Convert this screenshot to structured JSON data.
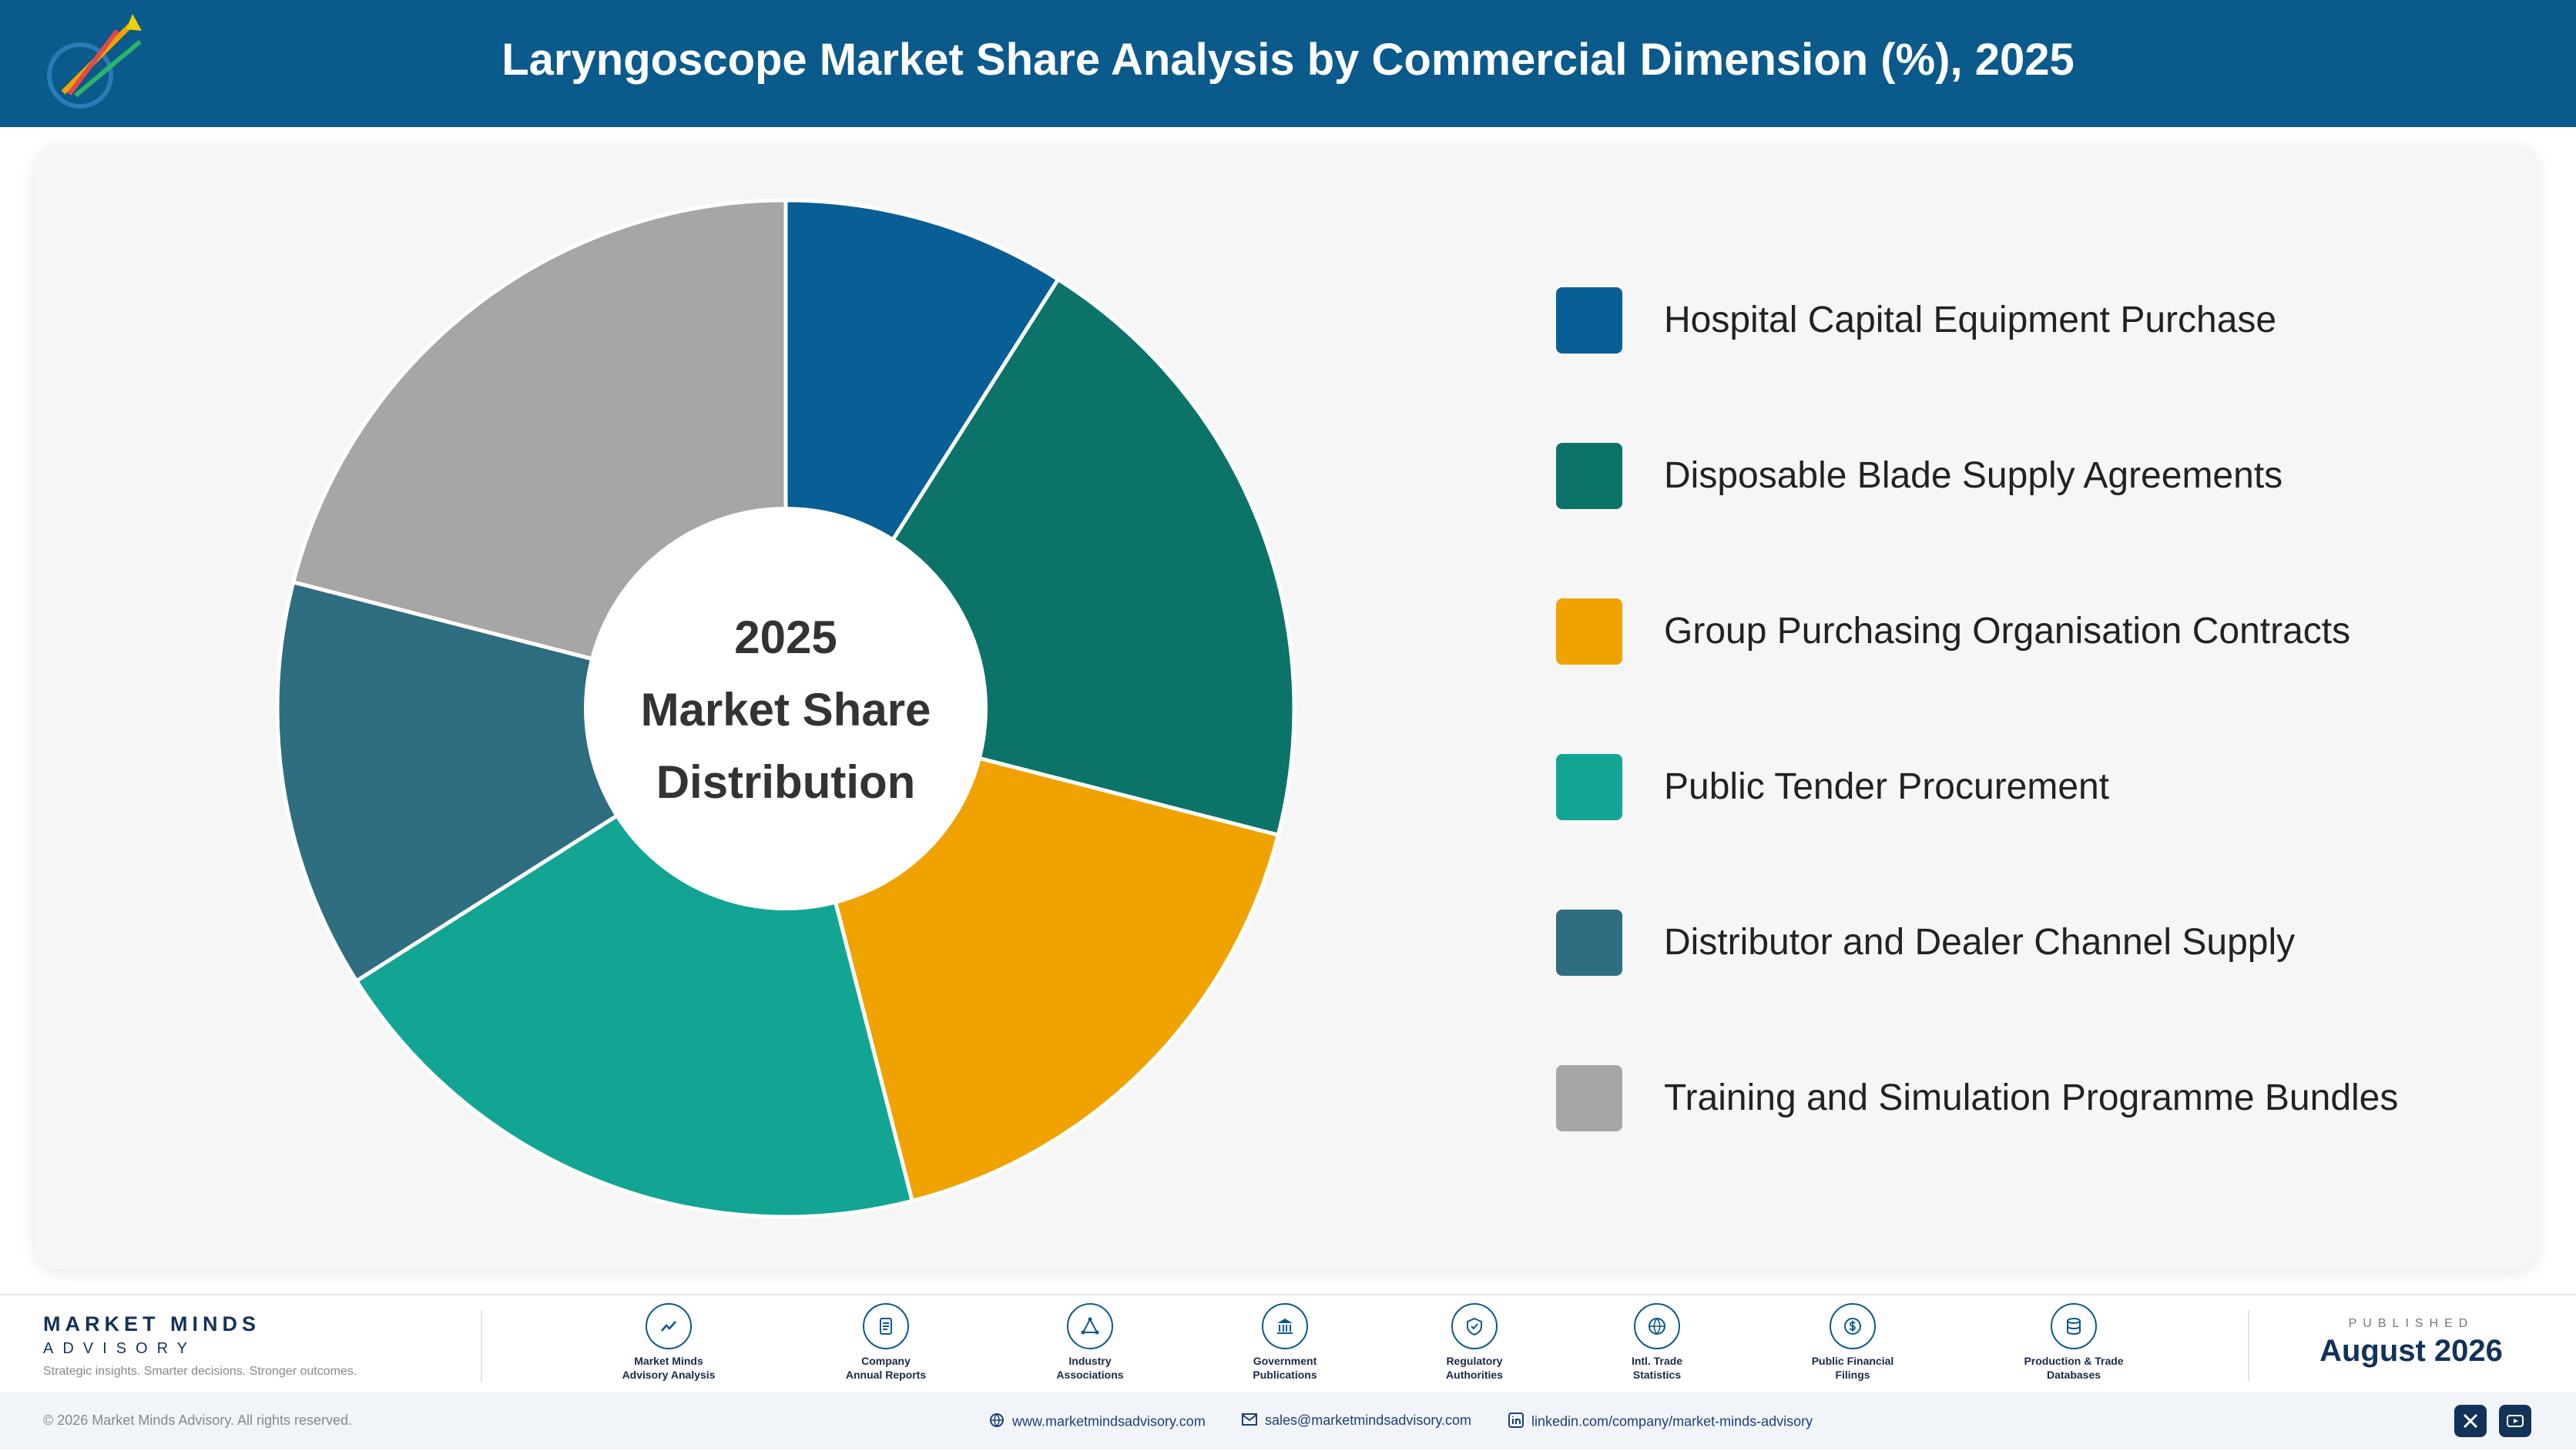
{
  "header": {
    "title": "Laryngoscope Market Share Analysis by Commercial Dimension (%), 2025"
  },
  "chart_data": {
    "type": "pie",
    "title": "Laryngoscope Market Share Analysis by Commercial Dimension (%), 2025",
    "center_label": [
      "2025",
      "Market Share",
      "Distribution"
    ],
    "categories": [
      "Hospital Capital Equipment Purchase",
      "Disposable Blade Supply Agreements",
      "Group Purchasing Organisation Contracts",
      "Public Tender Procurement",
      "Distributor and Dealer Channel Supply",
      "Training and Simulation Programme Bundles"
    ],
    "values": [
      9,
      20,
      17,
      20,
      13,
      21
    ],
    "colors": [
      "#075f96",
      "#0c7369",
      "#f0a300",
      "#12a594",
      "#2f6d80",
      "#a6a6a6"
    ],
    "legend": "right"
  },
  "footer": {
    "brand_name": "MARKET MINDS",
    "brand_sub": "ADVISORY",
    "tagline": "Strategic insights. Smarter decisions. Stronger outcomes.",
    "sources": [
      {
        "label": "Market Minds\nAdvisory Analysis",
        "icon": "chart-line-icon"
      },
      {
        "label": "Company\nAnnual Reports",
        "icon": "document-icon"
      },
      {
        "label": "Industry\nAssociations",
        "icon": "network-icon"
      },
      {
        "label": "Government\nPublications",
        "icon": "building-icon"
      },
      {
        "label": "Regulatory\nAuthorities",
        "icon": "shield-icon"
      },
      {
        "label": "Intl. Trade\nStatistics",
        "icon": "globe-icon"
      },
      {
        "label": "Public Financial\nFilings",
        "icon": "coin-icon"
      },
      {
        "label": "Production & Trade\nDatabases",
        "icon": "database-icon"
      }
    ],
    "published_label": "PUBLISHED",
    "published_date": "August 2026",
    "copyright": "© 2026 Market Minds Advisory. All rights reserved.",
    "website": "www.marketmindsadvisory.com",
    "email": "sales@marketmindsadvisory.com",
    "linkedin": "linkedin.com/company/market-minds-advisory"
  }
}
